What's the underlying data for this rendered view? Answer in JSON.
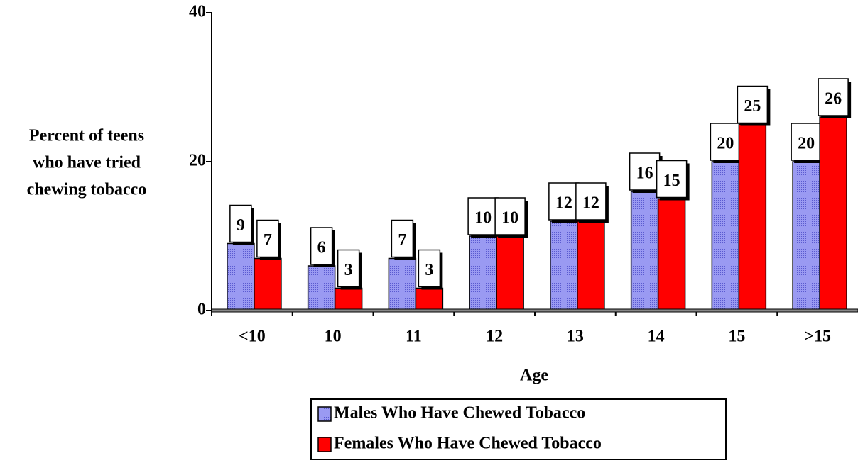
{
  "chart_data": {
    "type": "bar",
    "y_label": [
      "Percent of teens",
      "who have tried",
      "chewing tobacco"
    ],
    "x_label": "Age",
    "categories": [
      "<10",
      "10",
      "11",
      "12",
      "13",
      "14",
      "15",
      ">15"
    ],
    "series": [
      {
        "name": "Males Who Have Chewed Tobacco",
        "color": "#9a9af2",
        "values": [
          9,
          6,
          7,
          10,
          12,
          16,
          20,
          20
        ]
      },
      {
        "name": "Females Who Have Chewed Tobacco",
        "color": "#ff0000",
        "values": [
          7,
          3,
          3,
          10,
          12,
          15,
          25,
          26
        ]
      }
    ],
    "ylim": [
      0,
      40
    ],
    "yticks": [
      0,
      20,
      40
    ],
    "legend": "bottom"
  }
}
